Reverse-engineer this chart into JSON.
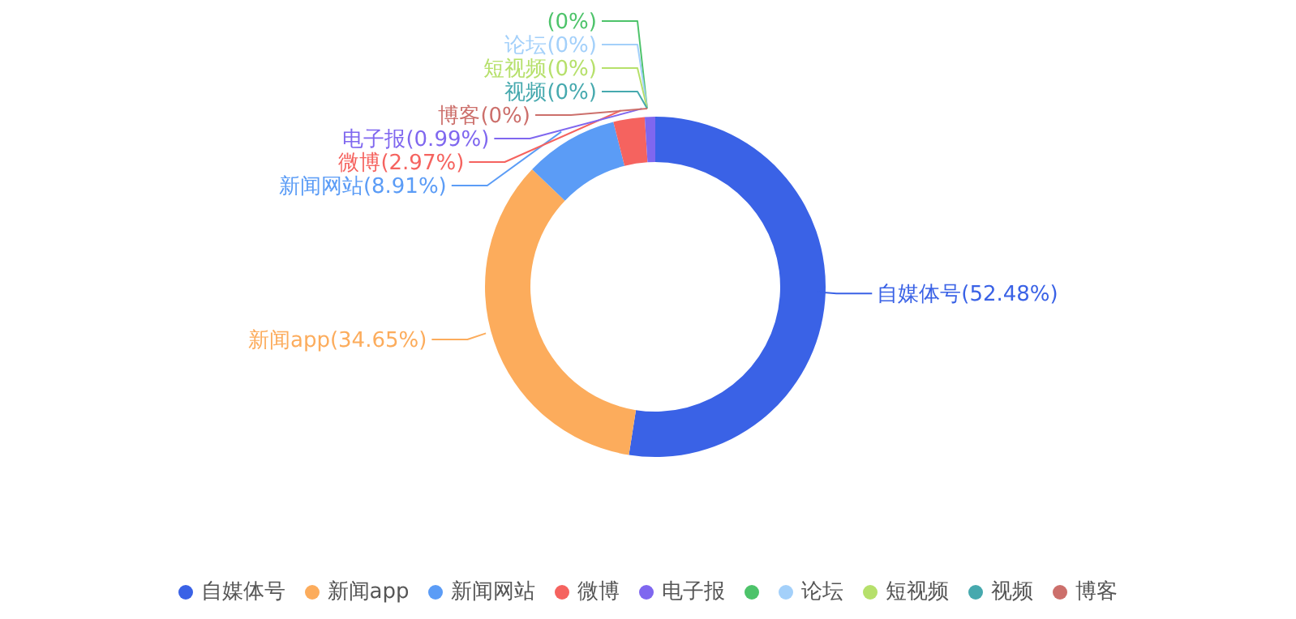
{
  "chart_data": {
    "type": "donut",
    "categories": [
      "自媒体号",
      "新闻app",
      "新闻网站",
      "微博",
      "电子报",
      null,
      "论坛",
      "短视频",
      "视频",
      "博客"
    ],
    "values": [
      52.48,
      34.65,
      8.91,
      2.97,
      0.99,
      0,
      0,
      0,
      0,
      0
    ],
    "value_labels": [
      "自媒体号(52.48%)",
      "新闻app(34.65%)",
      "新闻网站(8.91%)",
      "微博(2.97%)",
      "电子报(0.99%)",
      "(0%)",
      "论坛(0%)",
      "短视频(0%)",
      "视频(0%)",
      "博客(0%)"
    ],
    "colors": [
      "#3a62e6",
      "#fcac5c",
      "#5b9cf6",
      "#f5635f",
      "#7f67ef",
      "#4dc36a",
      "#a3d0fa",
      "#b6e06b",
      "#46a9ae",
      "#cc6f6b"
    ],
    "legend": "bottom"
  }
}
